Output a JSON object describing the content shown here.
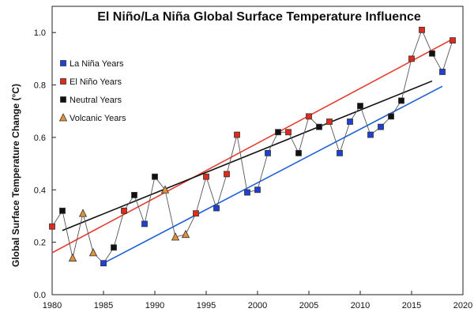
{
  "chart_data": {
    "type": "scatter",
    "title": "El Niño/La Niña Global Surface Temperature Influence",
    "xlabel": "",
    "ylabel": "Global Surface Temperature Change (°C)",
    "xlim": [
      1980,
      2020
    ],
    "ylim": [
      0.0,
      1.1
    ],
    "xticks": [
      1980,
      1985,
      1990,
      1995,
      2000,
      2005,
      2010,
      2015,
      2020
    ],
    "yticks": [
      0.0,
      0.2,
      0.4,
      0.6,
      0.8,
      1.0
    ],
    "ytick_labels": [
      "0.0",
      "0.2",
      "0.4",
      "0.6",
      "0.8",
      "1.0"
    ],
    "grid": false,
    "legend_position": "top-left",
    "connecting_line": {
      "color": "#555555",
      "points": [
        [
          1980,
          0.26
        ],
        [
          1981,
          0.32
        ],
        [
          1982,
          0.14
        ],
        [
          1983,
          0.31
        ],
        [
          1984,
          0.16
        ],
        [
          1985,
          0.12
        ],
        [
          1986,
          0.18
        ],
        [
          1987,
          0.32
        ],
        [
          1988,
          0.38
        ],
        [
          1989,
          0.27
        ],
        [
          1990,
          0.45
        ],
        [
          1991,
          0.4
        ],
        [
          1992,
          0.22
        ],
        [
          1993,
          0.23
        ],
        [
          1994,
          0.31
        ],
        [
          1995,
          0.45
        ],
        [
          1996,
          0.33
        ],
        [
          1997,
          0.46
        ],
        [
          1998,
          0.61
        ],
        [
          1999,
          0.39
        ],
        [
          2000,
          0.4
        ],
        [
          2001,
          0.54
        ],
        [
          2002,
          0.62
        ],
        [
          2003,
          0.62
        ],
        [
          2004,
          0.54
        ],
        [
          2005,
          0.68
        ],
        [
          2006,
          0.64
        ],
        [
          2007,
          0.66
        ],
        [
          2008,
          0.54
        ],
        [
          2009,
          0.66
        ],
        [
          2010,
          0.72
        ],
        [
          2011,
          0.61
        ],
        [
          2012,
          0.64
        ],
        [
          2013,
          0.68
        ],
        [
          2014,
          0.74
        ],
        [
          2015,
          0.9
        ],
        [
          2016,
          1.01
        ],
        [
          2017,
          0.92
        ],
        [
          2018,
          0.85
        ],
        [
          2019,
          0.97
        ]
      ]
    },
    "series": [
      {
        "name": "La Niña Years",
        "marker": "square",
        "color": "#1f3fd6",
        "points": [
          [
            1985,
            0.12
          ],
          [
            1989,
            0.27
          ],
          [
            1996,
            0.33
          ],
          [
            1999,
            0.39
          ],
          [
            2000,
            0.4
          ],
          [
            2001,
            0.54
          ],
          [
            2008,
            0.54
          ],
          [
            2009,
            0.66
          ],
          [
            2011,
            0.61
          ],
          [
            2012,
            0.64
          ],
          [
            2018,
            0.85
          ]
        ],
        "trend": {
          "color": "#1f5fd6",
          "x": [
            1985,
            2018
          ],
          "y": [
            0.12,
            0.795
          ]
        }
      },
      {
        "name": "El Niño Years",
        "marker": "square",
        "color": "#e02a1c",
        "points": [
          [
            1980,
            0.26
          ],
          [
            1987,
            0.32
          ],
          [
            1994,
            0.31
          ],
          [
            1995,
            0.45
          ],
          [
            1997,
            0.46
          ],
          [
            1998,
            0.61
          ],
          [
            2003,
            0.62
          ],
          [
            2005,
            0.68
          ],
          [
            2007,
            0.66
          ],
          [
            2015,
            0.9
          ],
          [
            2016,
            1.01
          ],
          [
            2019,
            0.97
          ]
        ],
        "trend": {
          "color": "#e53b2f",
          "x": [
            1980,
            2019
          ],
          "y": [
            0.16,
            0.975
          ]
        }
      },
      {
        "name": "Neutral Years",
        "marker": "square",
        "color": "#111111",
        "points": [
          [
            1981,
            0.32
          ],
          [
            1986,
            0.18
          ],
          [
            1988,
            0.38
          ],
          [
            1990,
            0.45
          ],
          [
            2002,
            0.62
          ],
          [
            2004,
            0.54
          ],
          [
            2006,
            0.64
          ],
          [
            2010,
            0.72
          ],
          [
            2013,
            0.68
          ],
          [
            2014,
            0.74
          ],
          [
            2017,
            0.92
          ]
        ],
        "trend": {
          "color": "#111111",
          "x": [
            1981,
            2017
          ],
          "y": [
            0.245,
            0.815
          ]
        }
      },
      {
        "name": "Volcanic Years",
        "marker": "triangle",
        "color": "#e0913a",
        "points": [
          [
            1982,
            0.14
          ],
          [
            1983,
            0.31
          ],
          [
            1984,
            0.16
          ],
          [
            1991,
            0.4
          ],
          [
            1992,
            0.22
          ],
          [
            1993,
            0.23
          ]
        ]
      }
    ]
  }
}
